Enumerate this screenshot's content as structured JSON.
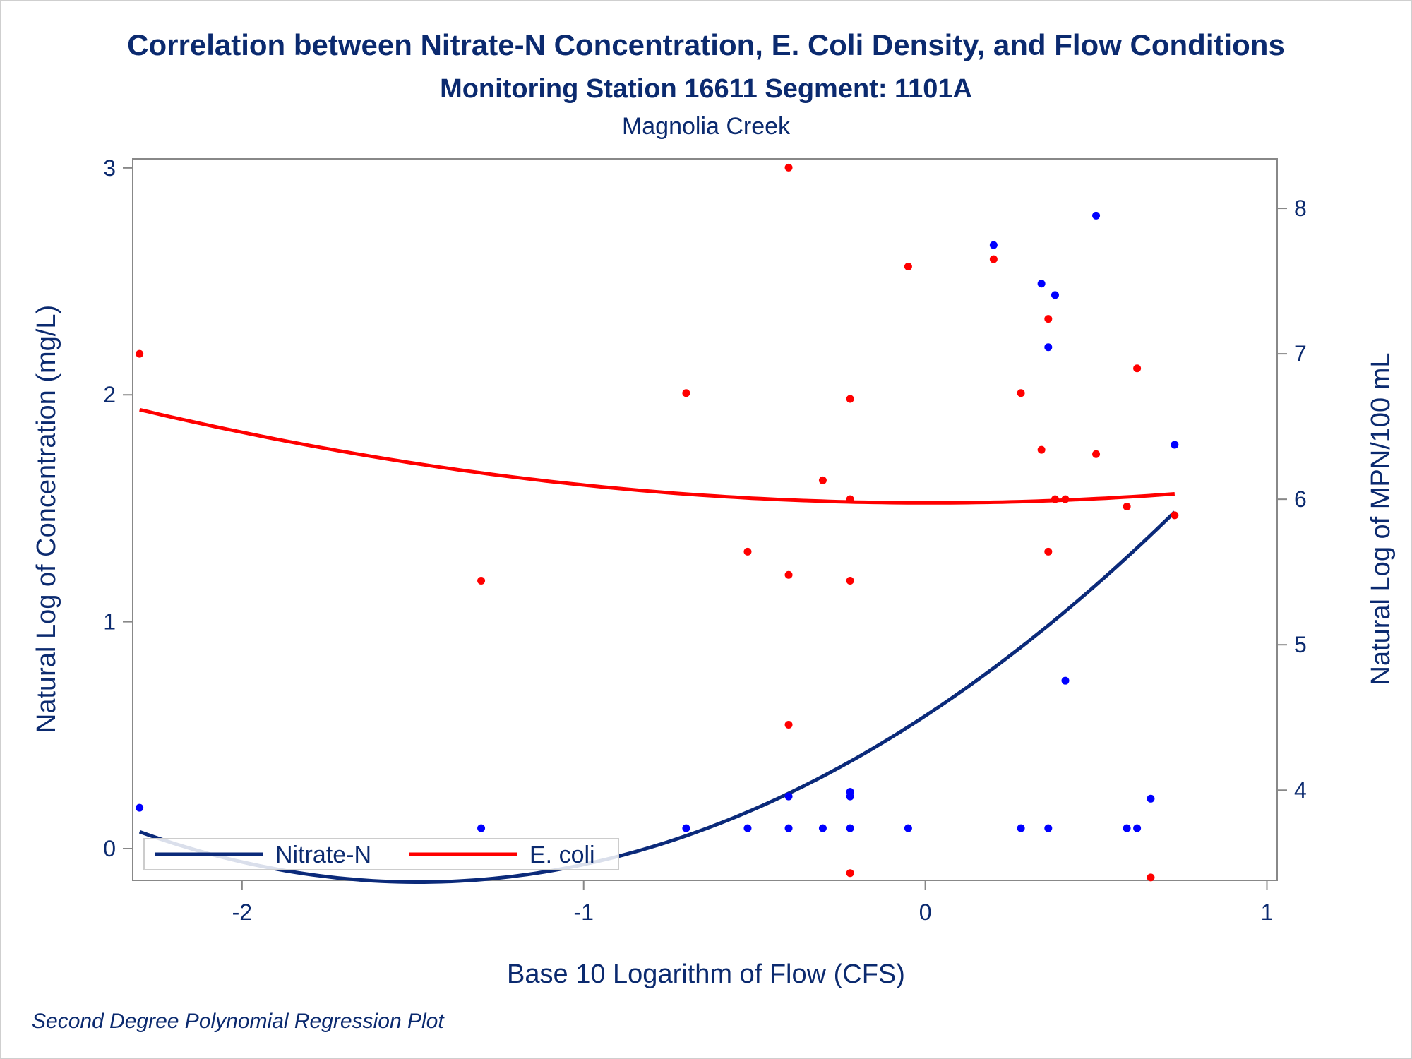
{
  "chart_data": {
    "type": "scatter",
    "title": "Correlation between Nitrate-N Concentration, E. Coli Density, and Flow Conditions",
    "subtitle": "Monitoring Station 16611 Segment: 1101A",
    "subtitle2": "Magnolia Creek",
    "footnote": "Second Degree Polynomial Regression Plot",
    "xlabel": "Base 10 Logarithm of Flow (CFS)",
    "ylabel_left": "Natural Log of Concentration (mg/L)",
    "ylabel_right": "Natural Log of MPN/100 mL",
    "xlim": [
      -2.32,
      1.03
    ],
    "ylim_left": [
      -0.14,
      3.04
    ],
    "ylim_right": [
      3.38,
      8.34
    ],
    "x_ticks": [
      -2,
      -1,
      0,
      1
    ],
    "x_tick_labels": [
      "-2",
      "-1",
      "0",
      "1"
    ],
    "y_left_ticks": [
      0,
      1,
      2,
      3
    ],
    "y_left_tick_labels": [
      "0",
      "1",
      "2",
      "3"
    ],
    "y_right_ticks": [
      4,
      5,
      6,
      7,
      8
    ],
    "y_right_tick_labels": [
      "4",
      "5",
      "6",
      "7",
      "8"
    ],
    "grid": false,
    "legend_position": "bottom-left inside",
    "series": [
      {
        "name": "Nitrate-N",
        "axis": "left",
        "color": "#0000ff",
        "points": [
          [
            -2.3,
            0.18
          ],
          [
            -1.3,
            0.09
          ],
          [
            -0.7,
            0.09
          ],
          [
            -0.52,
            0.09
          ],
          [
            -0.4,
            0.23
          ],
          [
            -0.4,
            0.09
          ],
          [
            -0.3,
            0.09
          ],
          [
            -0.22,
            0.25
          ],
          [
            -0.22,
            0.23
          ],
          [
            -0.22,
            0.09
          ],
          [
            -0.05,
            0.09
          ],
          [
            0.2,
            2.66
          ],
          [
            0.28,
            0.09
          ],
          [
            0.34,
            2.49
          ],
          [
            0.36,
            2.21
          ],
          [
            0.36,
            0.09
          ],
          [
            0.38,
            2.44
          ],
          [
            0.41,
            0.74
          ],
          [
            0.5,
            2.79
          ],
          [
            0.59,
            0.09
          ],
          [
            0.62,
            0.09
          ],
          [
            0.66,
            0.22
          ],
          [
            0.73,
            1.78
          ]
        ]
      },
      {
        "name": "E. coli",
        "axis": "right",
        "color": "#ff0000",
        "points": [
          [
            -2.3,
            7.0
          ],
          [
            -1.3,
            5.44
          ],
          [
            -0.7,
            6.73
          ],
          [
            -0.52,
            5.64
          ],
          [
            -0.4,
            8.28
          ],
          [
            -0.4,
            5.48
          ],
          [
            -0.4,
            4.45
          ],
          [
            -0.3,
            6.13
          ],
          [
            -0.22,
            6.69
          ],
          [
            -0.22,
            6.0
          ],
          [
            -0.22,
            5.44
          ],
          [
            -0.22,
            3.43
          ],
          [
            -0.05,
            7.6
          ],
          [
            0.2,
            7.65
          ],
          [
            0.28,
            6.73
          ],
          [
            0.34,
            6.34
          ],
          [
            0.36,
            7.24
          ],
          [
            0.36,
            5.64
          ],
          [
            0.38,
            6.0
          ],
          [
            0.41,
            6.0
          ],
          [
            0.5,
            6.31
          ],
          [
            0.59,
            5.95
          ],
          [
            0.62,
            6.9
          ],
          [
            0.66,
            3.4
          ],
          [
            0.73,
            5.89
          ]
        ]
      }
    ],
    "fits": [
      {
        "name": "Nitrate-N",
        "axis": "left",
        "color": "#0b2a7a",
        "coef": [
          0.585,
          0.988,
          0.333
        ],
        "x_range": [
          -2.3,
          0.73
        ]
      },
      {
        "name": "E. coli",
        "axis": "right",
        "color": "#ff0000",
        "coef": [
          5.975,
          -0.0026,
          0.12
        ],
        "x_range": [
          -2.3,
          0.73
        ]
      }
    ],
    "legend": [
      {
        "label": "Nitrate-N",
        "color": "#0b2a7a"
      },
      {
        "label": "E. coli",
        "color": "#ff0000"
      }
    ]
  }
}
